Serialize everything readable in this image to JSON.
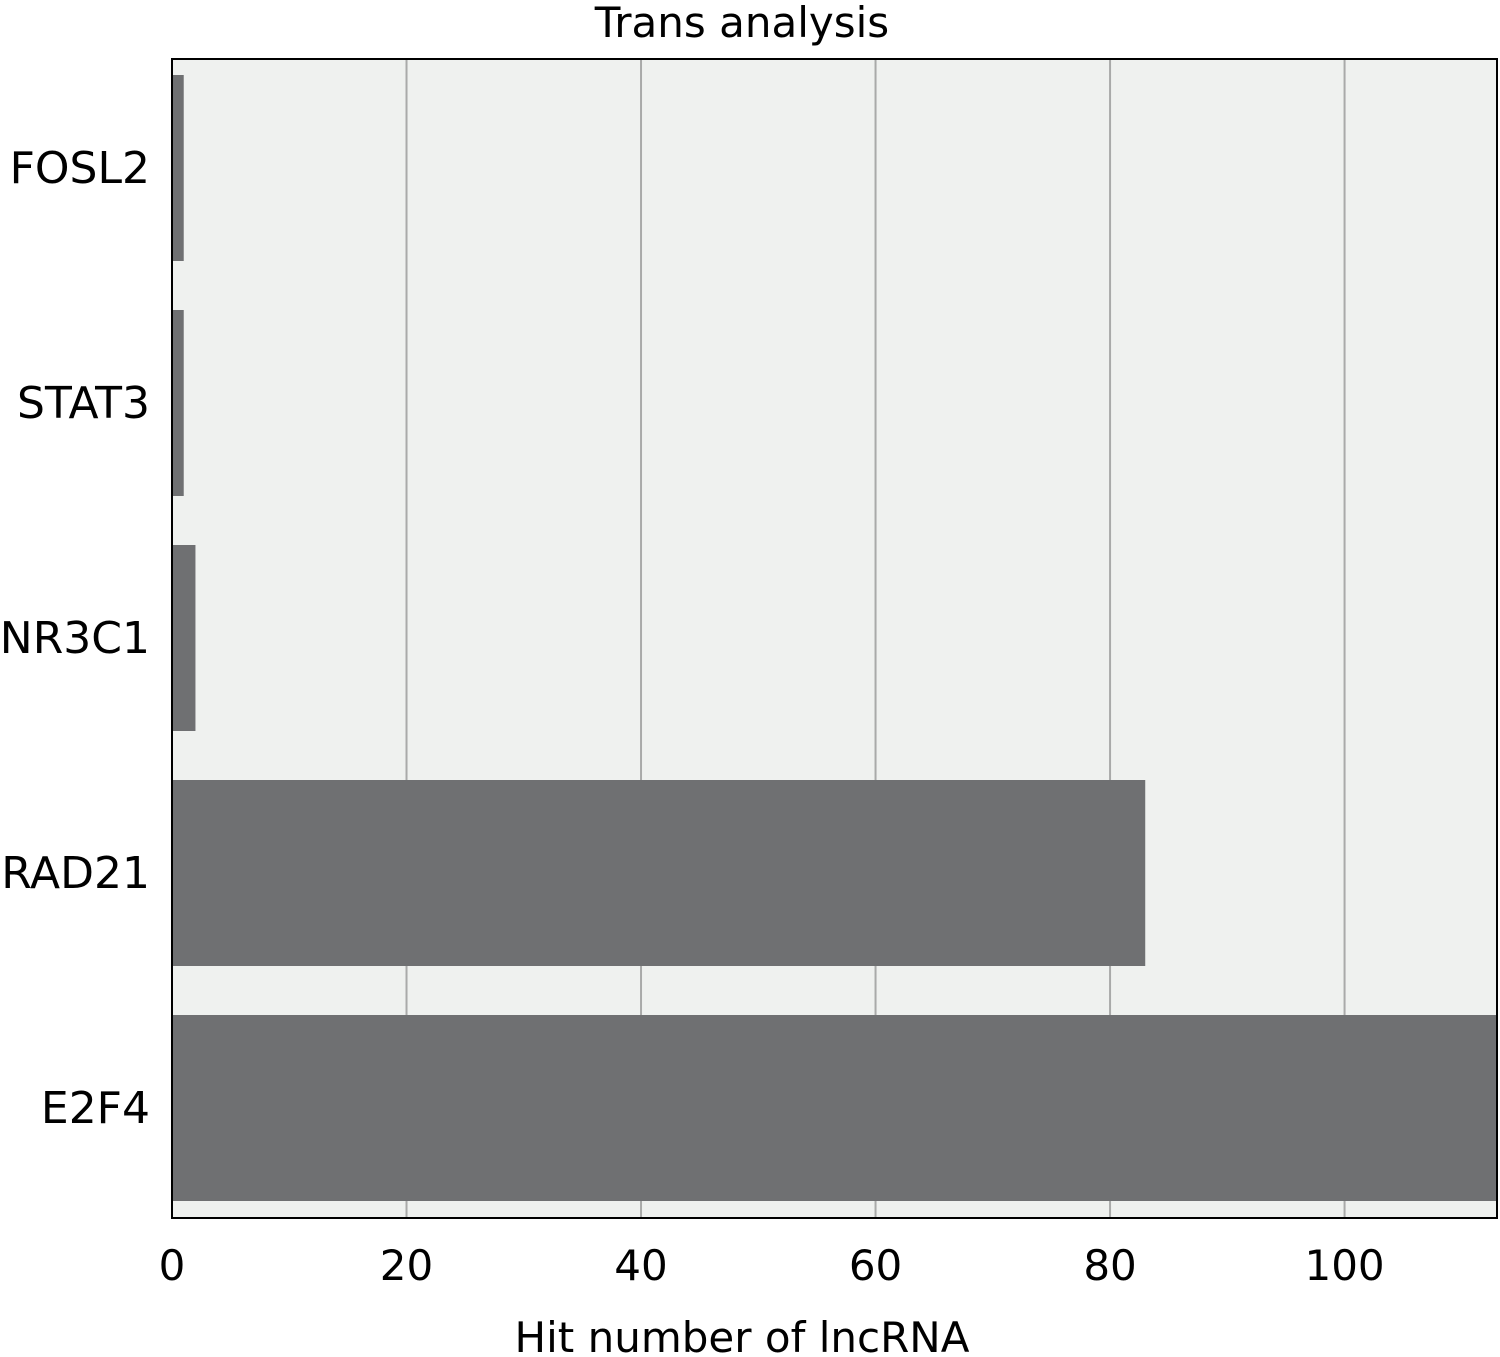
{
  "chart_data": {
    "type": "bar",
    "orientation": "horizontal",
    "title": "Trans analysis",
    "xlabel": "Hit number of lncRNA",
    "ylabel": "",
    "categories": [
      "FOSL2",
      "STAT3",
      "NR3C1",
      "RAD21",
      "E2F4"
    ],
    "values": [
      1,
      1,
      2,
      83,
      113
    ],
    "xlim": [
      0,
      113
    ],
    "xticks": [
      "0",
      "20",
      "40",
      "60",
      "80",
      "100"
    ],
    "grid": true,
    "legend": "none",
    "colors": {
      "bar": "#6f7072",
      "plot_background": "#eff1ef",
      "grid": "#a9aaa9",
      "axis": "#000000"
    }
  }
}
